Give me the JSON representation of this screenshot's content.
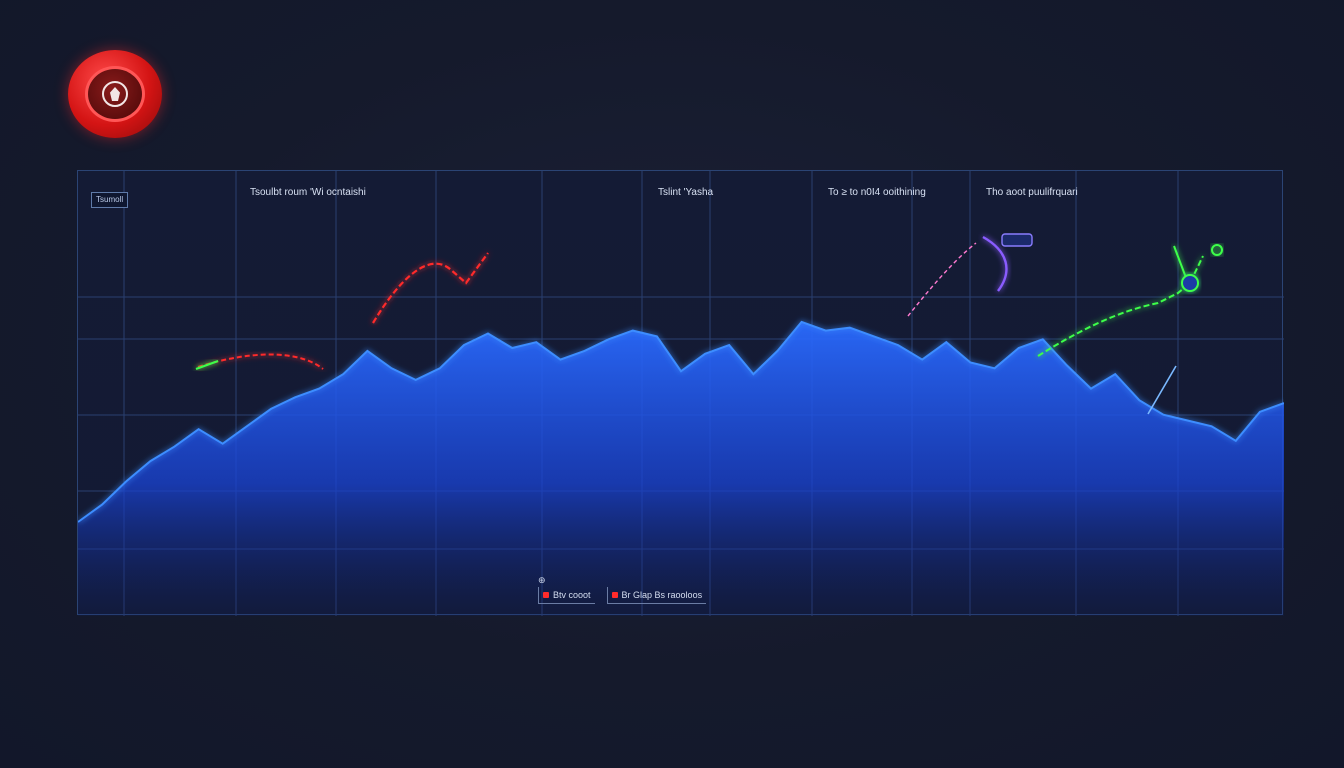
{
  "colors": {
    "background": "#151a2c",
    "area_fill": "#1f5cff",
    "area_line": "#3c8dff",
    "accent_red": "#ff2b2b",
    "accent_green": "#3dff4a",
    "accent_purple": "#8a5cff"
  },
  "logo": {
    "icon": "shield-badge-icon"
  },
  "chart_data": {
    "type": "area",
    "x": [
      0,
      1,
      2,
      3,
      4,
      5,
      6,
      7,
      8,
      9,
      10,
      11,
      12,
      13,
      14,
      15,
      16,
      17,
      18,
      19,
      20,
      21,
      22,
      23,
      24,
      25,
      26,
      27,
      28,
      29,
      30,
      31,
      32,
      33,
      34,
      35,
      36,
      37,
      38,
      39,
      40,
      41,
      42,
      43,
      44,
      45,
      46,
      47,
      48,
      49,
      50
    ],
    "series": [
      {
        "values": [
          10,
          16,
          24,
          31,
          36,
          42,
          37,
          43,
          49,
          53,
          56,
          61,
          69,
          63,
          59,
          63,
          71,
          75,
          70,
          72,
          66,
          69,
          73,
          76,
          74,
          62,
          68,
          71,
          61,
          69,
          79,
          76,
          77,
          74,
          71,
          66,
          72,
          65,
          63,
          70,
          73,
          64,
          56,
          61,
          52,
          47,
          45,
          43,
          38,
          48,
          51
        ]
      }
    ],
    "column_labels": [
      "Tsoulbt roum 'Wi ocntaishi",
      "Tslint 'Yasha",
      "To ≥ to n0I4 ooithining",
      "Tho aoot puulifrquari"
    ],
    "corner_tag": "Tsumoll",
    "legend": [
      {
        "label": "Btv cooot",
        "color": "#ff2b2b"
      },
      {
        "label": "Br Glap Bs raooloos",
        "color": "#ff2b2b"
      }
    ],
    "grid": true,
    "ylim": [
      0,
      100
    ],
    "xlim": [
      0,
      50
    ]
  }
}
